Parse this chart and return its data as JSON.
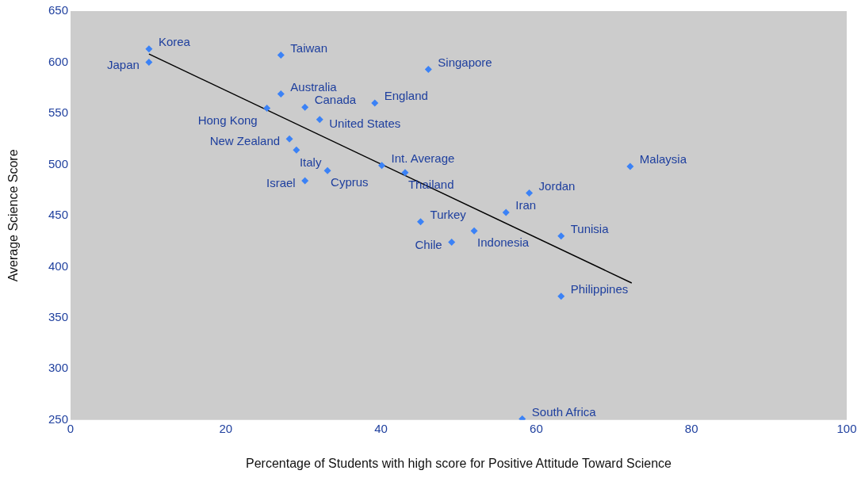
{
  "chart_data": {
    "type": "scatter",
    "xlabel": "Percentage of Students with high score for Positive Attitude Toward Science",
    "ylabel": "Average Science Score",
    "xlim": [
      0,
      100
    ],
    "xticks": [
      0,
      20,
      40,
      60,
      80,
      100
    ],
    "ylim": [
      250,
      650
    ],
    "yticks": [
      250,
      300,
      350,
      400,
      450,
      500,
      550,
      600,
      650
    ],
    "grid": false,
    "legend": false,
    "marker": "diamond",
    "series": [
      {
        "type": "scatter",
        "color": "#3b82f6",
        "x": [
          10.1,
          10.1,
          27.1,
          46.1,
          27.1,
          30.2,
          39.2,
          25.3,
          32.1,
          28.2,
          29.1,
          40.1,
          72.1,
          33.1,
          43.1,
          30.2,
          59.1,
          56.1,
          45.1,
          52.0,
          63.2,
          49.1,
          63.2,
          58.2
        ],
        "values": [
          613,
          600,
          607,
          593,
          569,
          556,
          560,
          555,
          544,
          525,
          514,
          499,
          498,
          494,
          492,
          484,
          472,
          453,
          444,
          435,
          430,
          424,
          371,
          251
        ]
      },
      {
        "type": "line",
        "color": "#000000",
        "marker": "none",
        "x": [
          10.1,
          72.3
        ],
        "values": [
          608,
          384
        ]
      }
    ],
    "annotations": [
      {
        "text": "Korea",
        "x": 10.1,
        "y": 613
      },
      {
        "text": "Japan",
        "x": 10.1,
        "y": 600
      },
      {
        "text": "Taiwan",
        "x": 27.1,
        "y": 607
      },
      {
        "text": "Singapore",
        "x": 46.1,
        "y": 593
      },
      {
        "text": "Australia",
        "x": 27.1,
        "y": 569
      },
      {
        "text": "Canada",
        "x": 30.2,
        "y": 556
      },
      {
        "text": "England",
        "x": 39.2,
        "y": 560
      },
      {
        "text": "Hong Kong",
        "x": 25.3,
        "y": 555
      },
      {
        "text": "United States",
        "x": 32.1,
        "y": 544
      },
      {
        "text": "New Zealand",
        "x": 28.2,
        "y": 525
      },
      {
        "text": "Italy",
        "x": 29.1,
        "y": 514
      },
      {
        "text": "Int. Average",
        "x": 40.1,
        "y": 499
      },
      {
        "text": "Malaysia",
        "x": 72.1,
        "y": 498
      },
      {
        "text": "Cyprus",
        "x": 33.1,
        "y": 494
      },
      {
        "text": "Thailand",
        "x": 43.1,
        "y": 492
      },
      {
        "text": "Israel",
        "x": 30.2,
        "y": 484
      },
      {
        "text": "Jordan",
        "x": 59.1,
        "y": 472
      },
      {
        "text": "Iran",
        "x": 56.1,
        "y": 453
      },
      {
        "text": "Turkey",
        "x": 45.1,
        "y": 444
      },
      {
        "text": "Indonesia",
        "x": 52.0,
        "y": 435
      },
      {
        "text": "Tunisia",
        "x": 63.2,
        "y": 430
      },
      {
        "text": "Chile",
        "x": 49.1,
        "y": 424
      },
      {
        "text": "Philippines",
        "x": 63.2,
        "y": 371
      },
      {
        "text": "South Africa",
        "x": 58.2,
        "y": 251
      }
    ]
  }
}
